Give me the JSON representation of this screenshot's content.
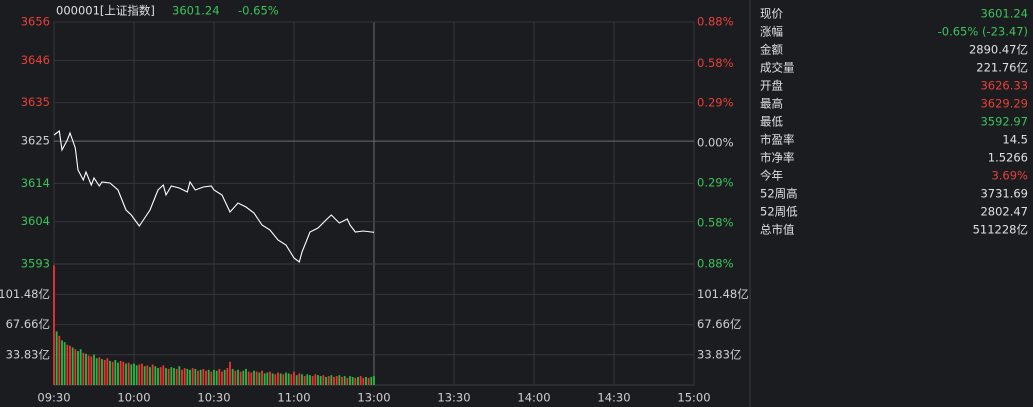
{
  "chart_data": [
    {
      "type": "line",
      "title": "000001[上证指数]",
      "last": "3601.24",
      "change": "-0.65%",
      "header_color": "#3cc35a",
      "color": "#ffffff",
      "up_color": "#e8403a",
      "down_color": "#3cc35a",
      "flat_color": "#d0d0d0",
      "grid": true,
      "x": [
        0,
        2,
        3,
        5,
        6,
        8,
        9,
        11,
        12,
        14,
        15,
        17,
        18,
        21,
        24,
        27,
        29,
        32,
        33,
        36,
        39,
        41,
        42,
        44,
        47,
        50,
        51,
        53,
        56,
        59,
        60,
        63,
        66,
        69,
        72,
        75,
        78,
        81,
        84,
        87,
        90,
        92,
        93,
        96,
        99,
        102,
        104,
        107,
        110,
        111,
        113,
        116,
        119,
        120
      ],
      "values": [
        3626.58,
        3627.62,
        3622.68,
        3625.28,
        3627.1,
        3623.2,
        3617.47,
        3614.86,
        3616.95,
        3613.56,
        3615.39,
        3613.3,
        3614.34,
        3614.08,
        3612.26,
        3607.05,
        3605.75,
        3602.89,
        3603.93,
        3607.05,
        3612.26,
        3613.56,
        3610.96,
        3613.3,
        3612.78,
        3611.74,
        3614.34,
        3612.26,
        3613.04,
        3613.3,
        3612.26,
        3610.96,
        3606.53,
        3608.88,
        3607.84,
        3606.27,
        3603.15,
        3601.85,
        3599.24,
        3597.94,
        3594.56,
        3593.52,
        3596.12,
        3601.33,
        3602.37,
        3604.45,
        3605.75,
        3603.67,
        3604.71,
        3603.15,
        3601.33,
        3601.59,
        3601.33,
        3601.24
      ],
      "xlim": [
        0,
        240
      ],
      "xticks": [
        {
          "value": 0,
          "label": "09:30"
        },
        {
          "value": 30,
          "label": "10:00"
        },
        {
          "value": 60,
          "label": "10:30"
        },
        {
          "value": 90,
          "label": "11:00"
        },
        {
          "value": 120,
          "label": "13:00"
        },
        {
          "value": 150,
          "label": "13:30"
        },
        {
          "value": 180,
          "label": "14:00"
        },
        {
          "value": 210,
          "label": "14:30"
        },
        {
          "value": 240,
          "label": "15:00"
        }
      ],
      "ylim": [
        3593,
        3656
      ],
      "yticks": [
        3656,
        3646,
        3635,
        3625,
        3614,
        3604,
        3593
      ],
      "y2lim": [
        -0.88,
        0.88
      ],
      "y2ticks": [
        {
          "value": 0.88,
          "label": "0.88%"
        },
        {
          "value": 0.58,
          "label": "0.58%"
        },
        {
          "value": 0.29,
          "label": "0.29%"
        },
        {
          "value": 0,
          "label": "0.00%"
        },
        {
          "value": -0.29,
          "label": "0.29%"
        },
        {
          "value": -0.58,
          "label": "0.58%"
        },
        {
          "value": -0.88,
          "label": "0.88%"
        }
      ]
    },
    {
      "type": "bar",
      "x": [
        0,
        1,
        2,
        3,
        4,
        5,
        6,
        7,
        8,
        9,
        10,
        11,
        12,
        13,
        14,
        15,
        16,
        17,
        18,
        19,
        20,
        21,
        22,
        23,
        24,
        25,
        26,
        27,
        28,
        29,
        30,
        31,
        32,
        33,
        34,
        35,
        36,
        37,
        38,
        39,
        40,
        41,
        42,
        43,
        44,
        45,
        46,
        47,
        48,
        49,
        50,
        51,
        52,
        53,
        54,
        55,
        56,
        57,
        58,
        59,
        60,
        61,
        62,
        63,
        64,
        65,
        66,
        67,
        68,
        69,
        70,
        71,
        72,
        73,
        74,
        75,
        76,
        77,
        78,
        79,
        80,
        81,
        82,
        83,
        84,
        85,
        86,
        87,
        88,
        89,
        90,
        91,
        92,
        93,
        94,
        95,
        96,
        97,
        98,
        99,
        100,
        101,
        102,
        103,
        104,
        105,
        106,
        107,
        108,
        109,
        110,
        111,
        112,
        113,
        114,
        115,
        116,
        117,
        118,
        119,
        120
      ],
      "values": [
        134,
        60,
        55,
        50,
        48,
        45,
        44,
        42,
        40,
        38,
        40,
        36,
        35,
        33,
        32,
        34,
        30,
        31,
        29,
        28,
        30,
        27,
        26,
        28,
        25,
        27,
        26,
        24,
        25,
        23,
        24,
        22,
        23,
        24,
        21,
        22,
        20,
        23,
        21,
        19,
        20,
        22,
        19,
        18,
        20,
        19,
        18,
        21,
        17,
        19,
        18,
        17,
        19,
        18,
        16,
        17,
        18,
        16,
        17,
        15,
        17,
        16,
        18,
        15,
        17,
        19,
        26,
        18,
        16,
        17,
        15,
        16,
        18,
        15,
        14,
        16,
        15,
        14,
        16,
        13,
        14,
        15,
        13,
        12,
        14,
        13,
        12,
        14,
        13,
        12,
        15,
        11,
        13,
        12,
        10,
        12,
        11,
        10,
        12,
        11,
        10,
        11,
        9,
        10,
        11,
        9,
        10,
        11,
        9,
        10,
        8,
        10,
        9,
        8,
        9,
        10,
        8,
        9,
        8,
        9,
        10
      ],
      "colors": [
        "#e33",
        "#2b4",
        "#e33",
        "#2b4",
        "#2b4",
        "#e33",
        "#e33",
        "#2b4",
        "#e33",
        "#2b4",
        "#2b4",
        "#e33",
        "#2b4",
        "#e33",
        "#e33",
        "#2b4",
        "#2b4",
        "#e33",
        "#2b4",
        "#e33",
        "#e33",
        "#2b4",
        "#e33",
        "#2b4",
        "#2b4",
        "#e33",
        "#e33",
        "#2b4",
        "#e33",
        "#2b4",
        "#2b4",
        "#2b4",
        "#e33",
        "#e33",
        "#2b4",
        "#e33",
        "#2b4",
        "#e33",
        "#2b4",
        "#2b4",
        "#e33",
        "#e33",
        "#2b4",
        "#e33",
        "#2b4",
        "#2b4",
        "#e33",
        "#2b4",
        "#e33",
        "#e33",
        "#2b4",
        "#2b4",
        "#e33",
        "#2b4",
        "#e33",
        "#2b4",
        "#e33",
        "#e33",
        "#2b4",
        "#e33",
        "#2b4",
        "#2b4",
        "#e33",
        "#e33",
        "#2b4",
        "#e33",
        "#e33",
        "#2b4",
        "#e33",
        "#2b4",
        "#e33",
        "#2b4",
        "#2b4",
        "#e33",
        "#e33",
        "#2b4",
        "#e33",
        "#2b4",
        "#e33",
        "#2b4",
        "#2b4",
        "#e33",
        "#2b4",
        "#e33",
        "#e33",
        "#2b4",
        "#e33",
        "#2b4",
        "#2b4",
        "#e33",
        "#e33",
        "#2b4",
        "#e33",
        "#2b4",
        "#e33",
        "#2b4",
        "#2b4",
        "#e33",
        "#e33",
        "#2b4",
        "#2b4",
        "#e33",
        "#2b4",
        "#e33",
        "#2b4",
        "#e33",
        "#e33",
        "#2b4",
        "#e33",
        "#2b4",
        "#e33",
        "#2b4",
        "#2b4",
        "#e33",
        "#2b4",
        "#e33",
        "#e33",
        "#2b4",
        "#e33",
        "#2b4",
        "#2b4"
      ],
      "ylim": [
        0,
        135.5
      ],
      "yticks": [
        {
          "value": 101.48,
          "label": "101.48亿"
        },
        {
          "value": 67.66,
          "label": "67.66亿"
        },
        {
          "value": 33.83,
          "label": "33.83亿"
        }
      ]
    }
  ],
  "quote": {
    "rows": [
      {
        "label": "现价",
        "value": "3601.24",
        "color": "#3cc35a"
      },
      {
        "label": "涨幅",
        "value": "-0.65% (-23.47)",
        "color": "#3cc35a"
      },
      {
        "label": "金额",
        "value": "2890.47亿",
        "color": "#e0e0e0"
      },
      {
        "label": "成交量",
        "value": "221.76亿",
        "color": "#e0e0e0"
      },
      {
        "label": "开盘",
        "value": "3626.33",
        "color": "#e8403a"
      },
      {
        "label": "最高",
        "value": "3629.29",
        "color": "#e8403a"
      },
      {
        "label": "最低",
        "value": "3592.97",
        "color": "#3cc35a"
      },
      {
        "label": "市盈率",
        "value": "14.5",
        "color": "#e0e0e0"
      },
      {
        "label": "市净率",
        "value": "1.5266",
        "color": "#e0e0e0"
      },
      {
        "label": "今年",
        "value": "3.69%",
        "color": "#e8403a"
      },
      {
        "label": "52周高",
        "value": "3731.69",
        "color": "#e0e0e0"
      },
      {
        "label": "52周低",
        "value": "2802.47",
        "color": "#e0e0e0"
      },
      {
        "label": "总市值",
        "value": "511228亿",
        "color": "#e0e0e0"
      }
    ]
  }
}
